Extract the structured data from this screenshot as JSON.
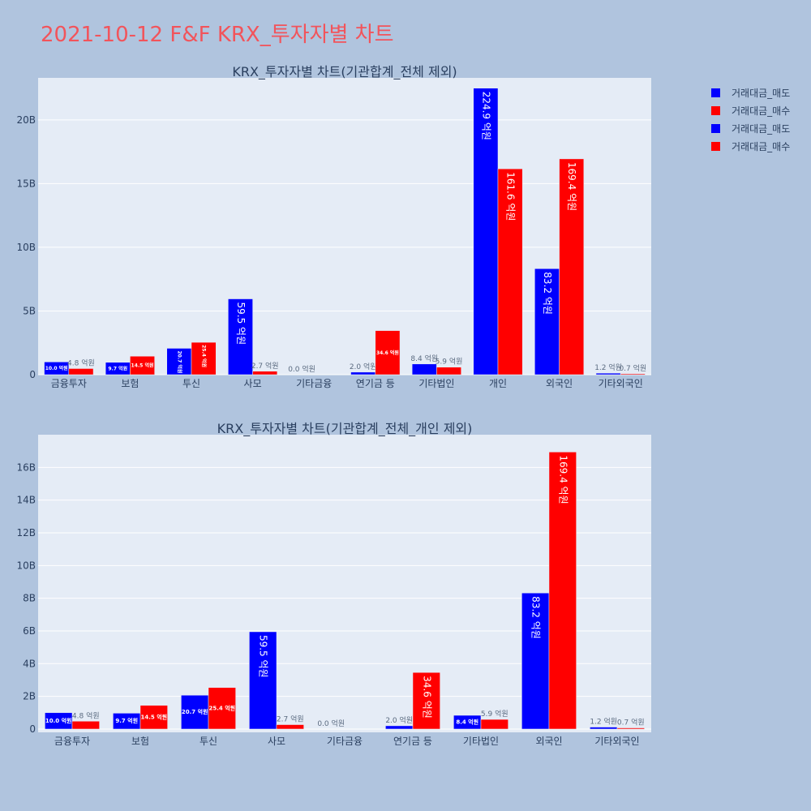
{
  "page": {
    "title": "2021-10-12 F&F KRX_투자자별 차트"
  },
  "legend": {
    "items": [
      {
        "label": "거래대금_매도",
        "color": "#0000ff"
      },
      {
        "label": "거래대금_매수",
        "color": "#ff0000"
      },
      {
        "label": "거래대금_매도",
        "color": "#0000ff"
      },
      {
        "label": "거래대금_매수",
        "color": "#ff0000"
      }
    ]
  },
  "chart_data": [
    {
      "type": "bar",
      "title": "KRX_투자자별 차트(기관합계_전체 제외)",
      "categories": [
        "금융투자",
        "보험",
        "투신",
        "사모",
        "기타금융",
        "연기금 등",
        "기타법인",
        "개인",
        "외국인",
        "기타외국인"
      ],
      "ylim": [
        0,
        23.3
      ],
      "yticks": [
        0,
        5,
        10,
        15,
        20
      ],
      "ytick_labels": [
        "0",
        "5B",
        "10B",
        "15B",
        "20B"
      ],
      "grid": true,
      "series": [
        {
          "name": "거래대금_매도",
          "color": "#0000ff",
          "values": [
            1.0,
            0.97,
            2.07,
            5.95,
            0.0,
            0.2,
            0.84,
            22.49,
            8.32,
            0.12
          ],
          "labels": [
            "10.0 억원",
            "9.7 억원",
            "20.7 억원",
            "59.5 억원",
            "0.0 억원",
            "2.0 억원",
            "8.4 억원",
            "224.9 억원",
            "83.2 억원",
            "1.2 억원"
          ]
        },
        {
          "name": "거래대금_매수",
          "color": "#ff0000",
          "values": [
            0.48,
            1.45,
            2.54,
            0.27,
            0.0,
            3.46,
            0.59,
            16.16,
            16.94,
            0.07
          ],
          "labels": [
            "4.8 억원",
            "14.5 억원",
            "25.4 억원",
            "2.7 억원",
            "",
            "34.6 억원",
            "5.9 억원",
            "161.6 억원",
            "169.4 억원",
            "0.7 억원"
          ]
        }
      ]
    },
    {
      "type": "bar",
      "title": "KRX_투자자별 차트(기관합계_전체_개인 제외)",
      "categories": [
        "금융투자",
        "보험",
        "투신",
        "사모",
        "기타금융",
        "연기금 등",
        "기타법인",
        "외국인",
        "기타외국인"
      ],
      "ylim": [
        -0.2,
        18.0
      ],
      "yticks": [
        0,
        2,
        4,
        6,
        8,
        10,
        12,
        14,
        16
      ],
      "ytick_labels": [
        "0",
        "2B",
        "4B",
        "6B",
        "8B",
        "10B",
        "12B",
        "14B",
        "16B"
      ],
      "grid": true,
      "series": [
        {
          "name": "거래대금_매도",
          "color": "#0000ff",
          "values": [
            1.0,
            0.97,
            2.07,
            5.95,
            0.0,
            0.2,
            0.84,
            8.32,
            0.12
          ],
          "labels": [
            "10.0 억원",
            "9.7 억원",
            "20.7 억원",
            "59.5 억원",
            "0.0 억원",
            "2.0 억원",
            "8.4 억원",
            "83.2 억원",
            "1.2 억원"
          ]
        },
        {
          "name": "거래대금_매수",
          "color": "#ff0000",
          "values": [
            0.48,
            1.45,
            2.54,
            0.27,
            0.0,
            3.46,
            0.59,
            16.94,
            0.07
          ],
          "labels": [
            "4.8 억원",
            "14.5 억원",
            "25.4 억원",
            "2.7 억원",
            "",
            "34.6 억원",
            "5.9 억원",
            "169.4 억원",
            "0.7 억원"
          ]
        }
      ]
    }
  ]
}
